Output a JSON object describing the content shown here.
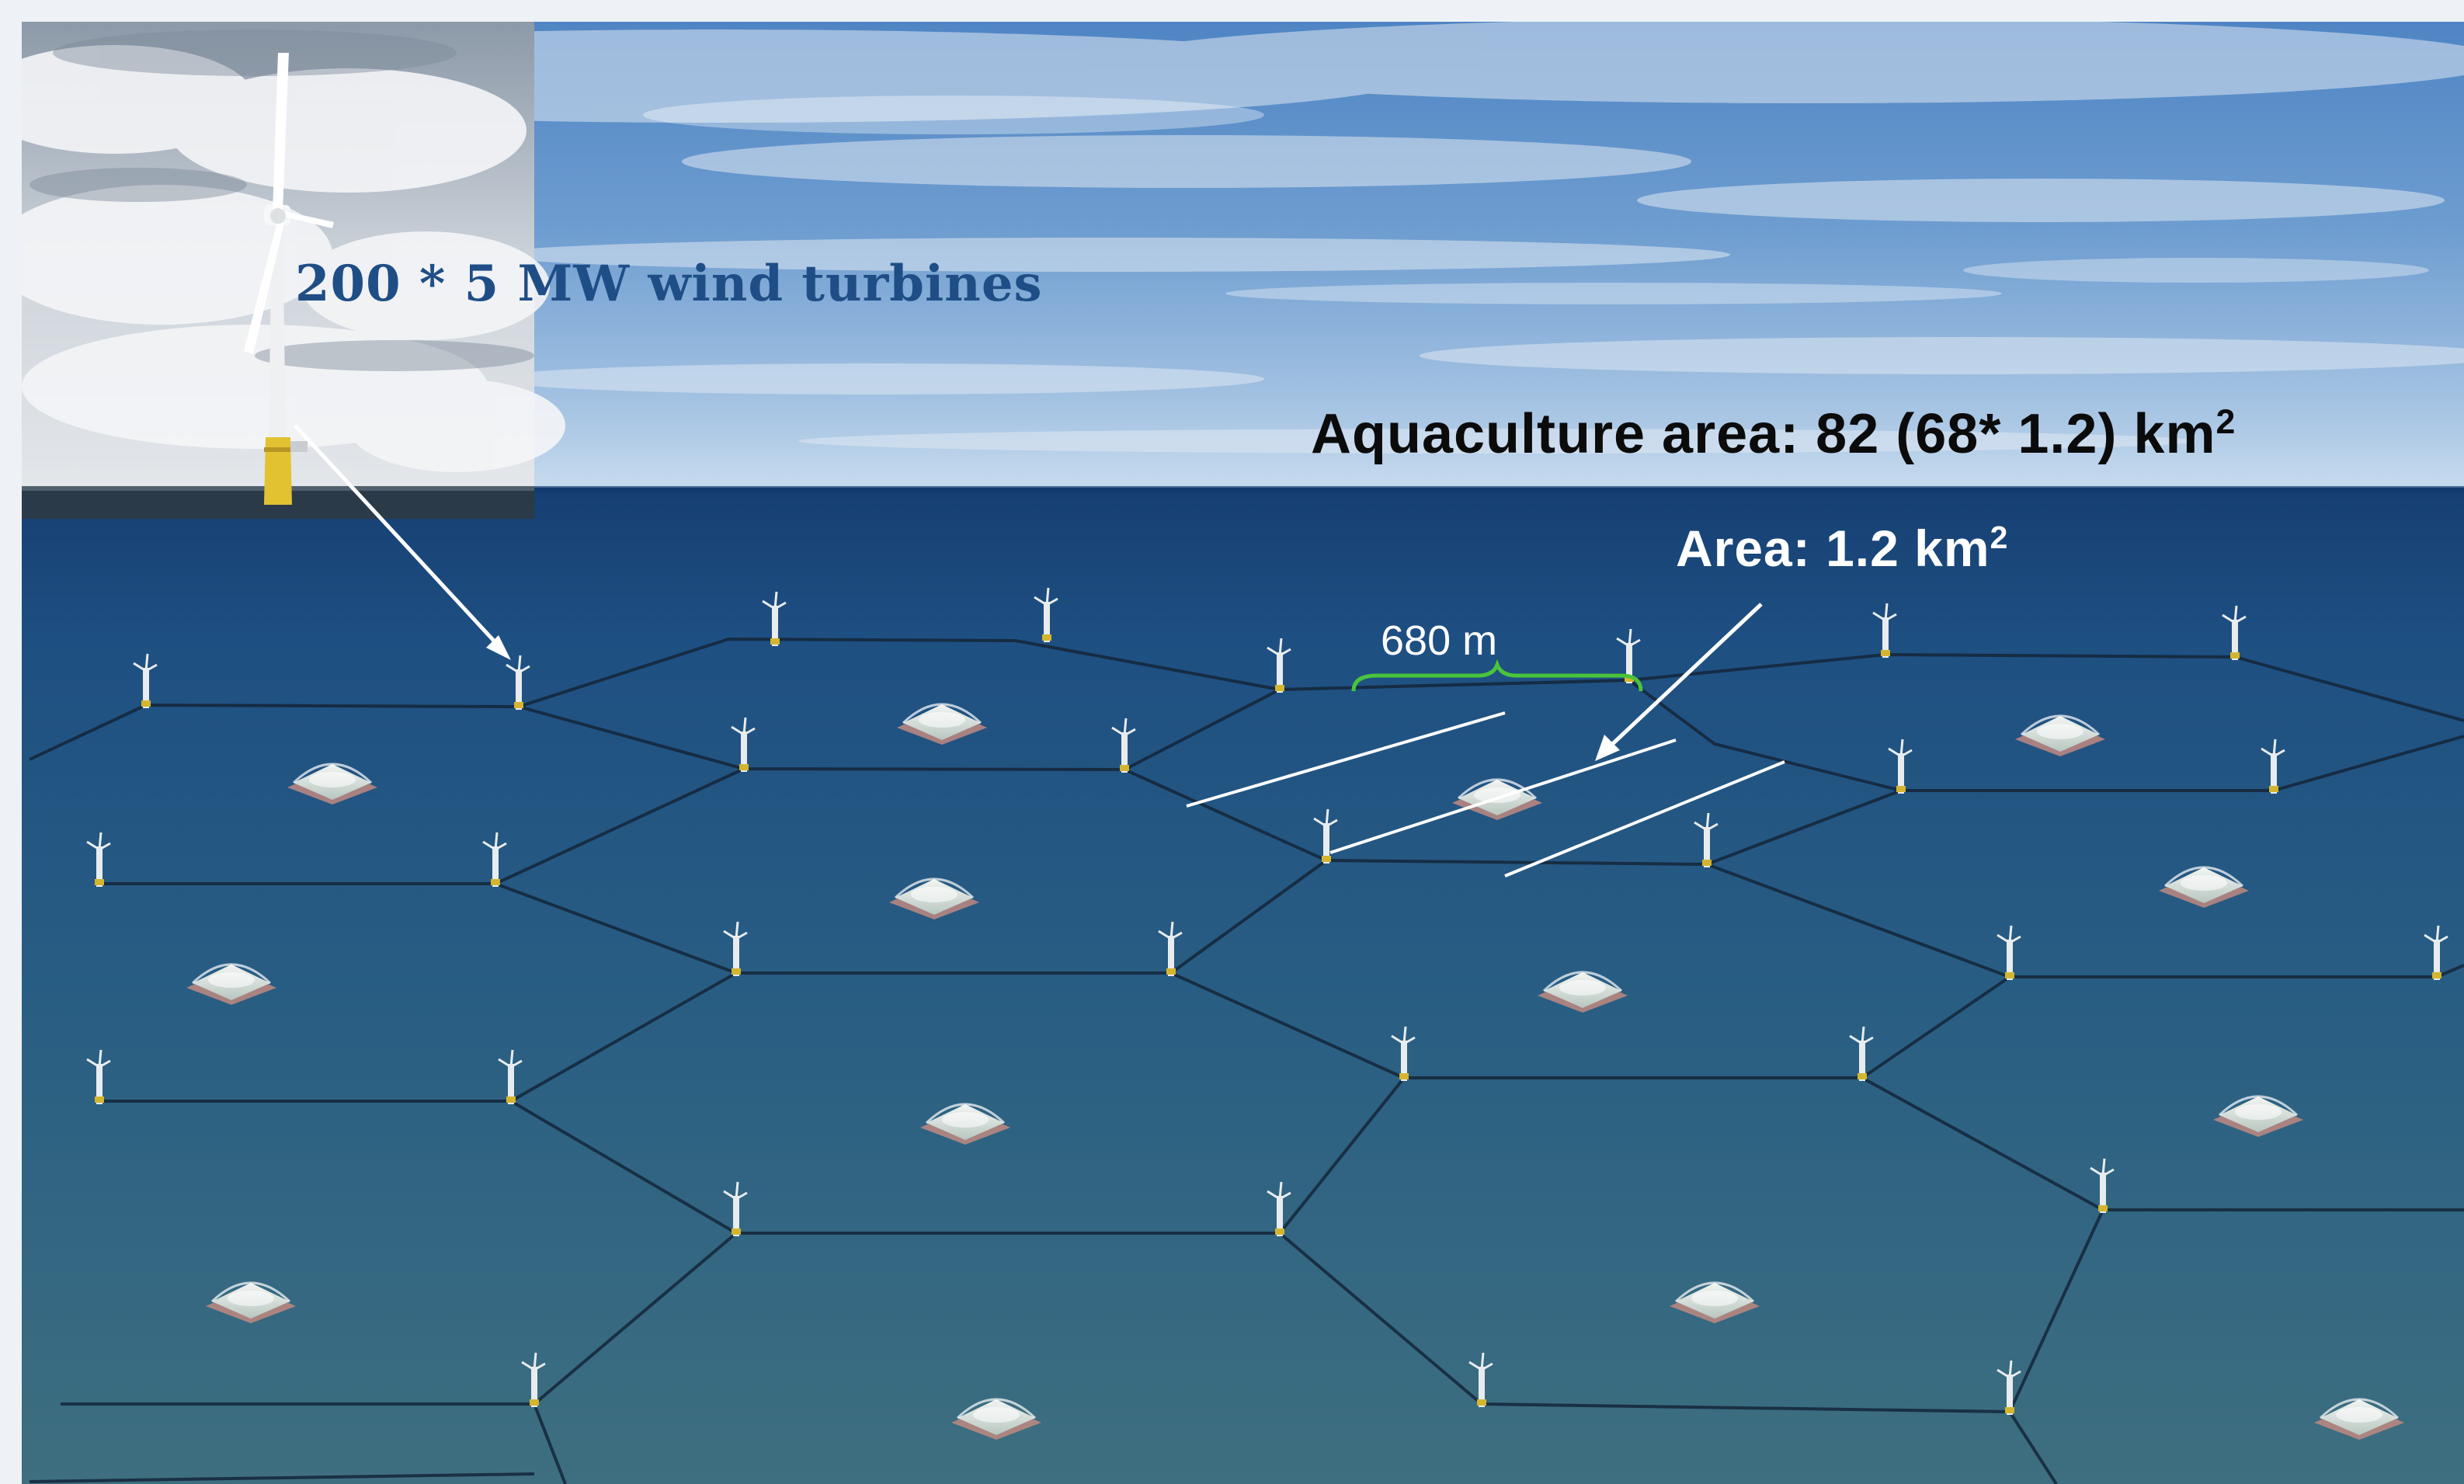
{
  "labels": {
    "turbine_caption": "200 * 5 MW wind turbines",
    "aquaculture_title": "Aquaculture area: 82 (68* 1.2) km",
    "aquaculture_title_sup": "2",
    "cell_area": "Area: 1.2 km",
    "cell_area_sup": "2",
    "spacing": "680 m"
  },
  "colors": {
    "sky_top": "#5d8fc9",
    "sky_horizon": "#b9d1e8",
    "sea_top": "#1d4f86",
    "sea_bottom": "#3e7184",
    "caption_text": "#1f4e86",
    "title_text": "#0b0b0b",
    "annotation": "#ffffff",
    "spacing_brace": "#4ac43a",
    "turbine_tower_base": "#e2c232"
  },
  "icons": {
    "inset": "offshore-wind-turbine-photo",
    "cage": "fish-cage-icon",
    "turbine": "wind-turbine-icon"
  }
}
